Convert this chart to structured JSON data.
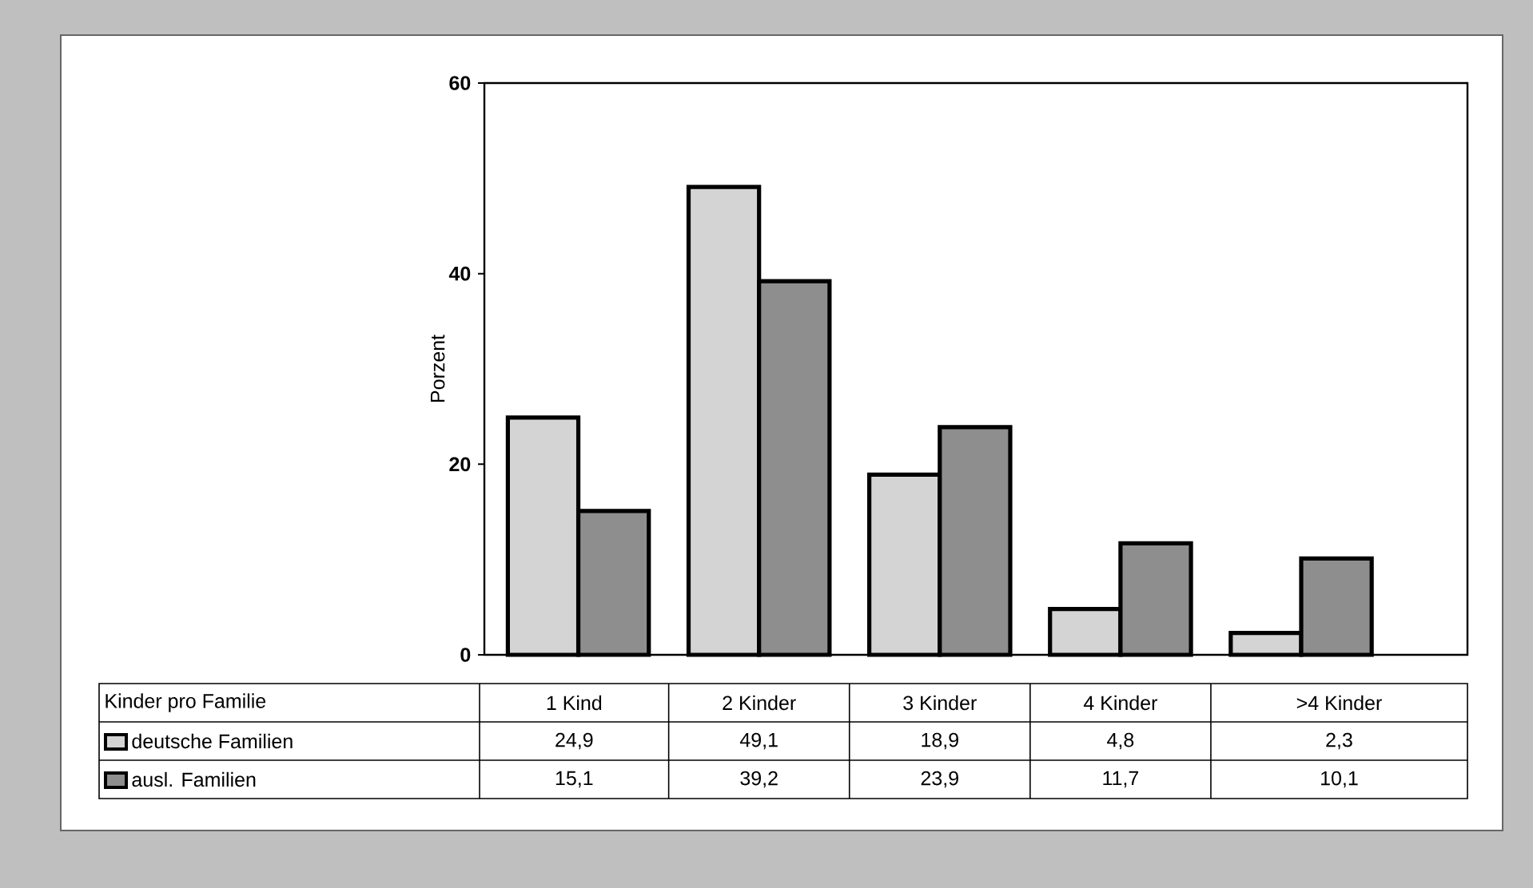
{
  "chart_data": {
    "type": "bar",
    "ylabel": "Porzent",
    "annotations": [
      "Kinder pro Familie"
    ],
    "legend": "bottom left",
    "categories": [
      "1 Kind",
      "2 Kinder",
      "3 Kinder",
      "4 Kinder",
      ">4 Kinder"
    ],
    "series": [
      {
        "name": "deutsche Familien",
        "color": "#d4d4d4",
        "values": [
          24.9,
          49.1,
          18.9,
          4.8,
          2.3
        ],
        "value_labels": [
          "24,9",
          "49,1",
          "18,9",
          "4,8",
          "2,3"
        ]
      },
      {
        "name": "ausl. Familien",
        "color": "#8e8e8e",
        "values": [
          15.1,
          39.2,
          23.9,
          11.7,
          10.1
        ],
        "value_labels": [
          "15,1",
          "39,2",
          "23,9",
          "11,7",
          "10,1"
        ]
      }
    ],
    "ylim": [
      0,
      60
    ],
    "yticks": [
      0,
      20,
      40,
      60
    ]
  }
}
